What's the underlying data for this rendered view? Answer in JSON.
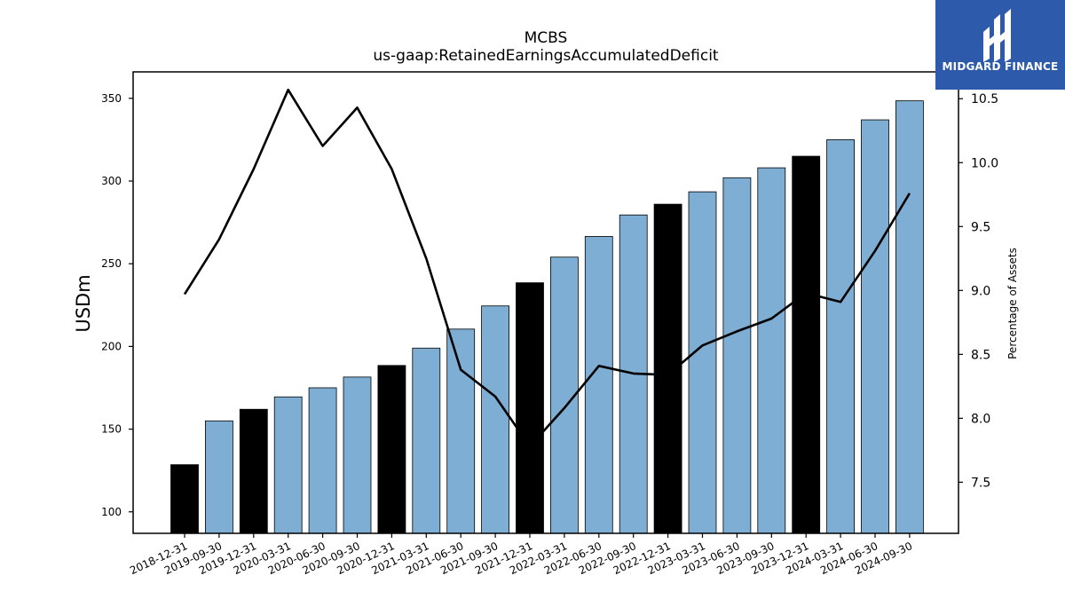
{
  "brand": {
    "name": "MIDGARD FINANCE",
    "color": "#2d5aab"
  },
  "colors": {
    "bar_default": "#7eaed3",
    "bar_highlight": "#000000",
    "line": "#000000"
  },
  "chart_data": {
    "type": "bar",
    "title": "MCBS",
    "subtitle": "us-gaap:RetainedEarningsAccumulatedDeficit",
    "ylabel": "USDm",
    "ylabel_right": "Percentage of Assets",
    "ylim": [
      87,
      366
    ],
    "ylim_right": [
      7.1,
      10.71
    ],
    "yticks": [
      100,
      150,
      200,
      250,
      300,
      350
    ],
    "yticks_right": [
      "7.5",
      "8.0",
      "8.5",
      "9.0",
      "9.5",
      "10.0",
      "10.5"
    ],
    "categories": [
      "2018-12-31",
      "2019-09-30",
      "2019-12-31",
      "2020-03-31",
      "2020-06-30",
      "2020-09-30",
      "2020-12-31",
      "2021-03-31",
      "2021-06-30",
      "2021-09-30",
      "2021-12-31",
      "2022-03-31",
      "2022-06-30",
      "2022-09-30",
      "2022-12-31",
      "2023-03-31",
      "2023-06-30",
      "2023-09-30",
      "2023-12-31",
      "2024-03-31",
      "2024-06-30",
      "2024-09-30"
    ],
    "series": [
      {
        "values": [
          128.5,
          155,
          162,
          169.5,
          175,
          181.5,
          188.5,
          199,
          210.5,
          224.5,
          238.5,
          254,
          266.5,
          279.5,
          286,
          293.5,
          302,
          308,
          315,
          325,
          337,
          348.5
        ],
        "highlight": [
          true,
          false,
          true,
          false,
          false,
          false,
          true,
          false,
          false,
          false,
          true,
          false,
          false,
          false,
          true,
          false,
          false,
          false,
          true,
          false,
          false,
          false
        ]
      },
      {
        "axis": "right",
        "values": [
          8.97,
          9.4,
          9.95,
          10.57,
          10.13,
          10.43,
          9.95,
          9.25,
          8.38,
          8.17,
          7.78,
          8.08,
          8.41,
          8.35,
          8.34,
          8.57,
          8.68,
          8.78,
          8.98,
          8.91,
          9.31,
          9.76
        ]
      }
    ]
  }
}
